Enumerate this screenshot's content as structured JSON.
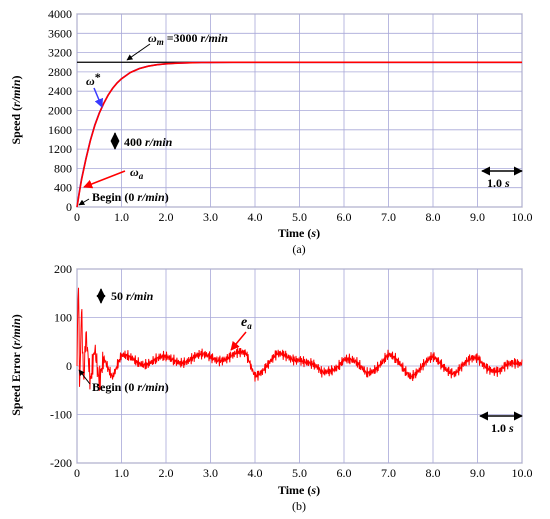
{
  "colors": {
    "reference": "#3a3aff",
    "actual": "#ff0000",
    "error": "#ff0000",
    "grid": "#a8a8d8",
    "frame": "#808080",
    "limit_line": "#000000"
  },
  "chart_data": [
    {
      "type": "line",
      "title": "",
      "xlabel": "Time (s)",
      "ylabel": "Speed (r/min)",
      "xlim": [
        0,
        10
      ],
      "ylim": [
        0,
        4000
      ],
      "grid": true,
      "x_ticks": [
        0,
        1,
        2,
        3,
        4,
        5,
        6,
        7,
        8,
        9,
        10
      ],
      "x_tick_labels": [
        "0",
        "1.0",
        "2.0",
        "3.0",
        "4.0",
        "5.0",
        "6.0",
        "7.0",
        "8.0",
        "9.0",
        "10.0"
      ],
      "y_ticks": [
        0,
        400,
        800,
        1200,
        1600,
        2000,
        2400,
        2800,
        3200,
        3600,
        4000
      ],
      "y_tick_labels": [
        "0",
        "400",
        "800",
        "1200",
        "1600",
        "2000",
        "2400",
        "2800",
        "3200",
        "3600",
        "4000"
      ],
      "reference_line": {
        "y": 3000,
        "label": "ωm =3000 r/min"
      },
      "series": [
        {
          "name": "ω*",
          "x": [
            0,
            0.05,
            0.1,
            0.2,
            0.3,
            0.4,
            0.5,
            0.6,
            0.7,
            0.8,
            0.9,
            1.0,
            1.2,
            1.4,
            1.6,
            1.8,
            2.0,
            2.2,
            2.4,
            2.6,
            2.8,
            3.0,
            3.5,
            4.0,
            5.0,
            6.0,
            7.0,
            8.0,
            9.0,
            10.0
          ],
          "y": [
            0,
            300,
            580,
            1000,
            1380,
            1700,
            1950,
            2150,
            2320,
            2460,
            2570,
            2660,
            2790,
            2870,
            2920,
            2950,
            2968,
            2980,
            2987,
            2992,
            2995,
            2997,
            2999,
            3000,
            3000,
            3000,
            3000,
            3000,
            3000,
            3000
          ]
        },
        {
          "name": "ωa",
          "x": [
            0,
            0.05,
            0.1,
            0.2,
            0.3,
            0.4,
            0.5,
            0.6,
            0.7,
            0.8,
            0.9,
            1.0,
            1.2,
            1.4,
            1.6,
            1.8,
            2.0,
            2.2,
            2.4,
            2.6,
            2.8,
            3.0,
            3.5,
            4.0,
            5.0,
            6.0,
            7.0,
            8.0,
            9.0,
            10.0
          ],
          "y": [
            0,
            280,
            560,
            990,
            1370,
            1690,
            1945,
            2145,
            2318,
            2458,
            2568,
            2658,
            2788,
            2868,
            2918,
            2949,
            2967,
            2979,
            2986,
            2991,
            2995,
            2997,
            2999,
            3000,
            3000,
            3000,
            3000,
            3000,
            3000,
            3000
          ]
        }
      ],
      "annotations": [
        {
          "text": "ω*"
        },
        {
          "text": "ωa"
        },
        {
          "text": "400 r/min"
        },
        {
          "text": "Begin (0 r/min)"
        },
        {
          "text": "1.0 s"
        }
      ],
      "caption": "(a)"
    },
    {
      "type": "line",
      "title": "",
      "xlabel": "Time (s)",
      "ylabel": "Speed Error (r/min)",
      "xlim": [
        0,
        10
      ],
      "ylim": [
        -200,
        200
      ],
      "grid": true,
      "x_ticks": [
        0,
        1,
        2,
        3,
        4,
        5,
        6,
        7,
        8,
        9,
        10
      ],
      "x_tick_labels": [
        "0",
        "1.0",
        "2.0",
        "3.0",
        "4.0",
        "5.0",
        "6.0",
        "7.0",
        "8.0",
        "9.0",
        "10.0"
      ],
      "y_ticks": [
        -200,
        -100,
        0,
        100,
        200
      ],
      "y_tick_labels": [
        "-200",
        "-100",
        "0",
        "100",
        "200"
      ],
      "series": [
        {
          "name": "ea",
          "x": [
            0,
            0.03,
            0.06,
            0.1,
            0.15,
            0.2,
            0.3,
            0.4,
            0.5,
            0.6,
            0.8,
            1.0,
            1.5,
            2.0,
            2.5,
            3.0,
            3.5,
            3.8,
            4.0,
            4.5,
            5.0,
            5.5,
            6.0,
            6.5,
            7.0,
            7.5,
            8.0,
            8.5,
            9.0,
            9.5,
            10.0
          ],
          "y": [
            0,
            195,
            -60,
            120,
            -45,
            60,
            -40,
            35,
            -30,
            25,
            -20,
            15,
            10,
            12,
            15,
            18,
            20,
            22,
            -15,
            18,
            20,
            -18,
            15,
            -12,
            18,
            -15,
            12,
            -10,
            15,
            -12,
            10
          ]
        }
      ],
      "annotations": [
        {
          "text": "ea"
        },
        {
          "text": "50 r/min"
        },
        {
          "text": "Begin (0 r/min)"
        },
        {
          "text": "1.0 s"
        }
      ],
      "caption": "(b)"
    }
  ]
}
